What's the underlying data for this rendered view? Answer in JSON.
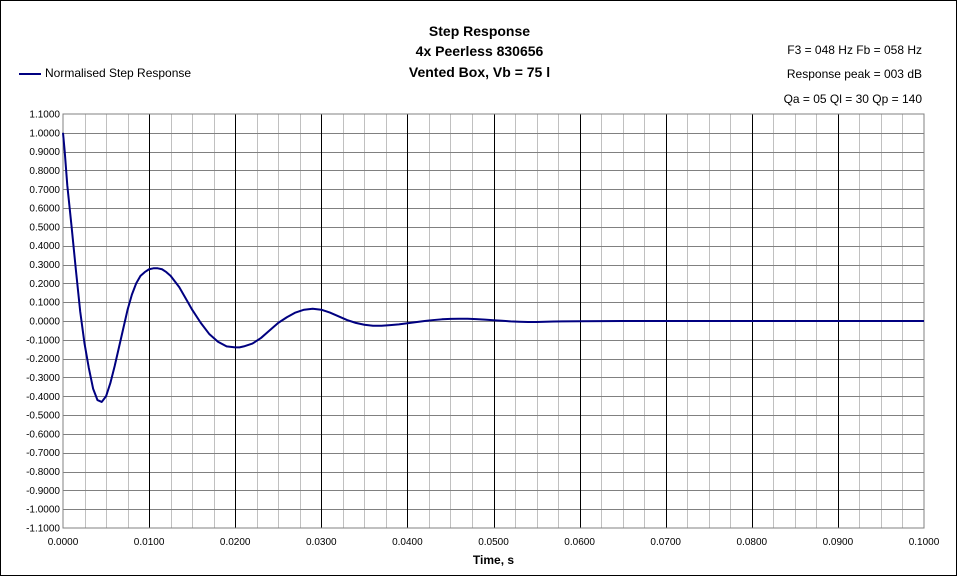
{
  "chart_data": {
    "type": "line",
    "title_lines": [
      "Step Response",
      "4x Peerless 830656",
      "Vented Box, Vb = 75 l"
    ],
    "info_lines": [
      "F3 = 048 Hz  Fb = 058 Hz",
      "Response peak = 003 dB",
      "Qa = 05  Ql = 30  Qp = 140"
    ],
    "xlabel": "Time, s",
    "ylabel": "",
    "xlim": [
      0,
      0.1
    ],
    "ylim": [
      -1.1,
      1.1
    ],
    "x_major_step": 0.01,
    "x_minor_step": 0.0025,
    "y_step": 0.1,
    "grid": true,
    "legend_position": "top-left",
    "line_color": "#000080",
    "series": [
      {
        "name": "Normalised Step Response",
        "x": [
          0,
          0.0002,
          0.0005,
          0.001,
          0.0015,
          0.002,
          0.0025,
          0.003,
          0.0035,
          0.004,
          0.0045,
          0.005,
          0.0055,
          0.006,
          0.0065,
          0.007,
          0.0075,
          0.008,
          0.0085,
          0.009,
          0.0095,
          0.01,
          0.0105,
          0.011,
          0.0115,
          0.012,
          0.0125,
          0.013,
          0.0135,
          0.014,
          0.0145,
          0.015,
          0.016,
          0.017,
          0.018,
          0.019,
          0.02,
          0.0205,
          0.021,
          0.022,
          0.023,
          0.024,
          0.025,
          0.026,
          0.027,
          0.028,
          0.029,
          0.03,
          0.031,
          0.032,
          0.033,
          0.034,
          0.035,
          0.036,
          0.037,
          0.038,
          0.039,
          0.04,
          0.041,
          0.042,
          0.043,
          0.044,
          0.045,
          0.046,
          0.047,
          0.048,
          0.049,
          0.05,
          0.051,
          0.052,
          0.053,
          0.054,
          0.055,
          0.056,
          0.057,
          0.058,
          0.06,
          0.065,
          0.07,
          0.08,
          0.09,
          0.1
        ],
        "y": [
          1.0,
          0.9,
          0.72,
          0.5,
          0.27,
          0.05,
          -0.12,
          -0.25,
          -0.36,
          -0.42,
          -0.43,
          -0.4,
          -0.33,
          -0.24,
          -0.14,
          -0.04,
          0.06,
          0.14,
          0.2,
          0.24,
          0.26,
          0.275,
          0.28,
          0.28,
          0.275,
          0.26,
          0.24,
          0.21,
          0.18,
          0.14,
          0.1,
          0.06,
          -0.01,
          -0.07,
          -0.11,
          -0.135,
          -0.14,
          -0.14,
          -0.135,
          -0.12,
          -0.09,
          -0.05,
          -0.01,
          0.02,
          0.045,
          0.06,
          0.065,
          0.06,
          0.045,
          0.025,
          0.005,
          -0.01,
          -0.02,
          -0.025,
          -0.025,
          -0.022,
          -0.018,
          -0.012,
          -0.006,
          0.0,
          0.005,
          0.009,
          0.011,
          0.012,
          0.012,
          0.01,
          0.007,
          0.004,
          0.001,
          -0.002,
          -0.004,
          -0.005,
          -0.005,
          -0.004,
          -0.003,
          -0.002,
          -0.001,
          0.0,
          0.0,
          0.0,
          0.0,
          0.0
        ]
      }
    ],
    "x_ticks": [
      "0.0000",
      "0.0100",
      "0.0200",
      "0.0300",
      "0.0400",
      "0.0500",
      "0.0600",
      "0.0700",
      "0.0800",
      "0.0900",
      "0.1000"
    ],
    "y_ticks": [
      "1.1000",
      "1.0000",
      "0.9000",
      "0.8000",
      "0.7000",
      "0.6000",
      "0.5000",
      "0.4000",
      "0.3000",
      "0.2000",
      "0.1000",
      "0.0000",
      "-0.1000",
      "-0.2000",
      "-0.3000",
      "-0.4000",
      "-0.5000",
      "-0.6000",
      "-0.7000",
      "-0.8000",
      "-0.9000",
      "-1.0000",
      "-1.1000"
    ]
  }
}
